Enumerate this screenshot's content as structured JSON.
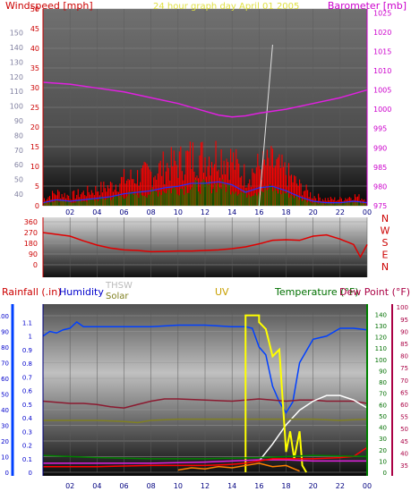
{
  "chart_data": [
    {
      "type": "line",
      "title": "24 hour graph day   April 01 2005",
      "left_axis_label": "Windspeed [mph]",
      "right_axis_label": "Barometer [mb]",
      "x_ticks": [
        "02",
        "04",
        "06",
        "08",
        "10",
        "12",
        "14",
        "16",
        "18",
        "20",
        "22",
        "00"
      ],
      "left_ticks": [
        "0",
        "5",
        "10",
        "15",
        "20",
        "25",
        "30",
        "35",
        "40",
        "45",
        "50"
      ],
      "left_secondary_ticks": [
        "40",
        "50",
        "60",
        "70",
        "80",
        "90",
        "100",
        "110",
        "120",
        "130",
        "140",
        "150"
      ],
      "right_ticks": [
        "975",
        "980",
        "985",
        "990",
        "995",
        "1000",
        "1005",
        "1010",
        "1015",
        "1020",
        "1025"
      ],
      "ylim_left": [
        0,
        50
      ],
      "ylim_right": [
        975,
        1026
      ],
      "series": [
        {
          "name": "Windspeed [mph]",
          "color": "#ff0000",
          "x": [
            0,
            1,
            2,
            3,
            4,
            5,
            6,
            7,
            8,
            9,
            10,
            11,
            12,
            13,
            14,
            15,
            16,
            17,
            18,
            19,
            20,
            21,
            22,
            23,
            24
          ],
          "values": [
            2,
            4,
            3,
            4,
            5,
            6,
            8,
            9,
            10,
            12,
            13,
            15,
            15,
            16,
            14,
            9,
            12,
            13,
            10,
            6,
            3,
            2,
            2,
            3,
            2
          ]
        },
        {
          "name": "Barometer [mb]",
          "color": "#e020e0",
          "x": [
            0,
            2,
            4,
            6,
            8,
            10,
            12,
            13,
            14,
            15,
            16,
            18,
            20,
            22,
            24
          ],
          "values": [
            1007,
            1006.5,
            1005.5,
            1004.5,
            1003,
            1001.5,
            999.5,
            998.5,
            998,
            998.3,
            999,
            1000,
            1001.5,
            1003,
            1005
          ]
        }
      ]
    },
    {
      "type": "line",
      "x_ticks": [
        "02",
        "04",
        "06",
        "08",
        "10",
        "12",
        "14",
        "16",
        "18",
        "20",
        "22",
        "00"
      ],
      "left_ticks": [
        "0",
        "90",
        "180",
        "270",
        "360"
      ],
      "right_labels": [
        "N",
        "W",
        "S",
        "E",
        "N"
      ],
      "ylim": [
        0,
        360
      ],
      "series": [
        {
          "name": "Wind direction",
          "color": "#e00000",
          "x": [
            0,
            1,
            2,
            3,
            4,
            5,
            6,
            7,
            8,
            9,
            10,
            11,
            12,
            13,
            14,
            15,
            16,
            17,
            18,
            19,
            20,
            21,
            22,
            23,
            23.5,
            24
          ],
          "values": [
            270,
            255,
            240,
            200,
            165,
            140,
            125,
            120,
            110,
            112,
            115,
            115,
            120,
            125,
            135,
            150,
            175,
            205,
            210,
            205,
            240,
            250,
            215,
            170,
            65,
            170
          ]
        }
      ]
    },
    {
      "type": "line",
      "labels": {
        "rainfall": "Rainfall (.in)",
        "humidity": "Humidity",
        "thsw": "THSW",
        "solar": "Solar",
        "uv": "UV",
        "temperature": "Temperature (°F)",
        "dewpoint": "Dew Point (°F)"
      },
      "x_ticks": [
        "02",
        "04",
        "06",
        "08",
        "10",
        "12",
        "14",
        "16",
        "18",
        "20",
        "22",
        "00"
      ],
      "rain_ticks": [
        "0",
        "0.1",
        "0.2",
        "0.3",
        "0.4",
        "0.5",
        "0.6",
        "0.7",
        "0.8",
        "0.9",
        "1",
        "1.1"
      ],
      "humidity_ticks": [
        "0",
        "10",
        "20",
        "30",
        "40",
        "50",
        "60",
        "70",
        "80",
        "90",
        "100"
      ],
      "temp_ticks": [
        "0",
        "10",
        "20",
        "30",
        "40",
        "50",
        "60",
        "70",
        "80",
        "90",
        "100",
        "110",
        "120",
        "130",
        "140"
      ],
      "dewpoint_ticks": [
        "35",
        "40",
        "45",
        "50",
        "55",
        "60",
        "65",
        "70",
        "75",
        "80",
        "85",
        "90",
        "95",
        "100"
      ],
      "series": [
        {
          "name": "Humidity",
          "color": "#0040ff",
          "axis": "humidity",
          "x": [
            0,
            0.5,
            1,
            1.5,
            2,
            2.5,
            3,
            4,
            6,
            8,
            10,
            12,
            14,
            15,
            15.5,
            16,
            16.5,
            17,
            17.5,
            18,
            18.5,
            19,
            20,
            21,
            22,
            23,
            24
          ],
          "values": [
            87,
            90,
            89,
            91,
            92,
            96,
            93,
            93,
            93,
            93,
            94,
            94,
            93,
            93,
            92,
            80,
            75,
            55,
            45,
            38,
            45,
            70,
            85,
            87,
            92,
            92,
            91
          ]
        },
        {
          "name": "Temperature",
          "color": "#8b1a30",
          "axis": "temp",
          "x": [
            0,
            1,
            2,
            3,
            4,
            5,
            6,
            7,
            8,
            9,
            10,
            12,
            14,
            15,
            16,
            17,
            18,
            19,
            20,
            21,
            22,
            23,
            24
          ],
          "values": [
            63,
            62,
            61,
            61,
            60,
            58,
            57,
            60,
            63,
            65,
            65,
            64,
            63,
            64,
            65,
            64,
            63,
            64,
            64,
            63,
            63,
            63,
            61
          ]
        },
        {
          "name": "THSW",
          "color": "#ffffff",
          "axis": "temp",
          "x": [
            16,
            17,
            18,
            19,
            20,
            21,
            22,
            23,
            24
          ],
          "values": [
            10,
            25,
            42,
            55,
            63,
            68,
            68,
            64,
            57
          ]
        },
        {
          "name": "Solar",
          "color": "#808020",
          "axis": "temp",
          "x": [
            0,
            2,
            4,
            6,
            7,
            8,
            10,
            12,
            14,
            16,
            18,
            20,
            22,
            24
          ],
          "values": [
            46,
            46,
            46,
            45,
            44,
            46,
            47,
            47,
            47,
            47,
            47,
            47,
            46,
            47
          ]
        },
        {
          "name": "UV",
          "color": "#ffff00",
          "axis": "rain",
          "x": [
            15,
            15,
            16,
            16,
            16.5,
            17,
            17.5,
            18,
            18.3,
            18.6,
            19,
            19.2,
            19.5
          ],
          "values": [
            0,
            1.15,
            1.15,
            1.1,
            1.05,
            0.85,
            0.9,
            0.15,
            0.3,
            0.1,
            0.3,
            0.05,
            0
          ]
        },
        {
          "name": "Dew Point",
          "color": "#e020e0",
          "axis": "temp",
          "x": [
            0,
            4,
            8,
            12,
            14,
            16,
            18,
            20,
            22,
            24
          ],
          "values": [
            8,
            8,
            8,
            9,
            10,
            11,
            11,
            10,
            10,
            10
          ]
        },
        {
          "name": "Rainfall",
          "color": "#ff0000",
          "axis": "temp",
          "x": [
            0,
            4,
            8,
            12,
            14,
            15,
            16,
            17,
            18,
            19,
            20,
            22,
            23,
            24
          ],
          "values": [
            5,
            5,
            6,
            6,
            7,
            8,
            10,
            12,
            12,
            12,
            12,
            13,
            14,
            22
          ]
        },
        {
          "name": "Dew Point 2",
          "color": "#008000",
          "axis": "temp",
          "x": [
            0,
            4,
            8,
            12,
            16,
            20,
            24
          ],
          "values": [
            15,
            13,
            12,
            12,
            13,
            15,
            14
          ]
        },
        {
          "name": "Solar 2",
          "color": "#ff8000",
          "axis": "temp",
          "x": [
            10,
            11,
            12,
            13,
            14,
            15,
            16,
            17,
            18,
            19
          ],
          "values": [
            2,
            4,
            3,
            5,
            4,
            6,
            8,
            5,
            6,
            1
          ]
        }
      ]
    }
  ]
}
